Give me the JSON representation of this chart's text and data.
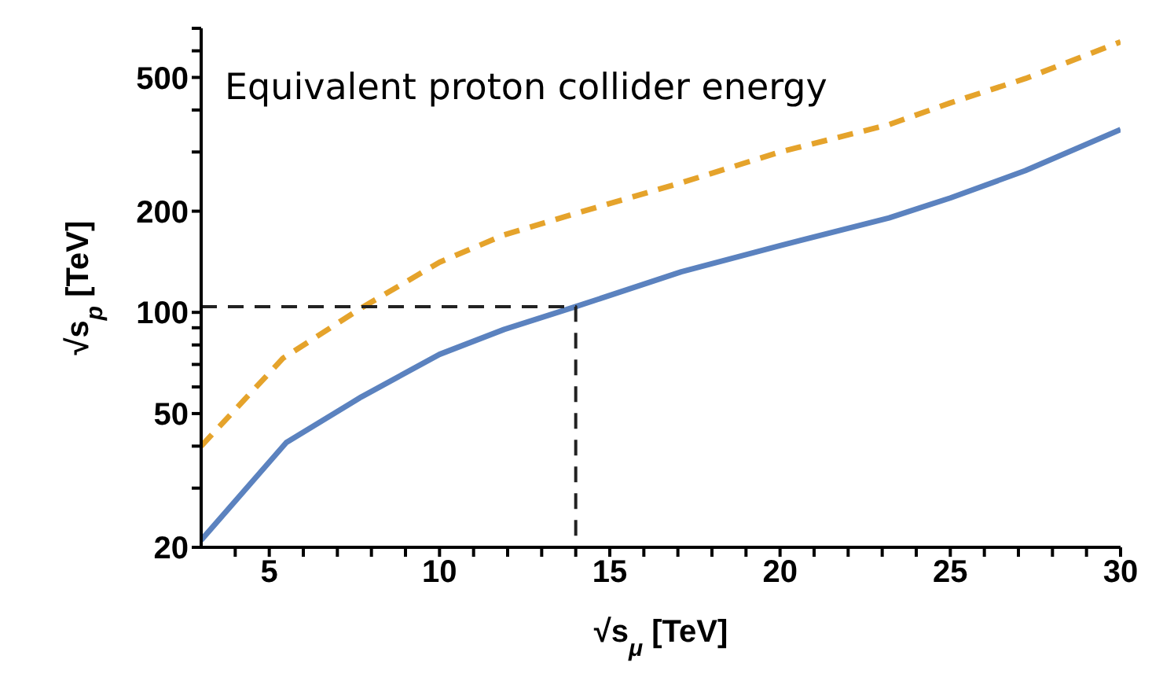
{
  "chart_data": {
    "type": "line",
    "title": "Equivalent proton collider energy",
    "xlabel": "√s$_{μ}$  [TeV]",
    "ylabel": "√s$_{p}$  [TeV]",
    "log": "y",
    "marker": "none",
    "xlim": [
      3,
      30
    ],
    "ylim": [
      20,
      700
    ],
    "xticks": [
      {
        "value": 4,
        "label": null
      },
      5,
      {
        "value": 6,
        "label": null
      },
      {
        "value": 7,
        "label": null
      },
      {
        "value": 8,
        "label": null
      },
      {
        "value": 9,
        "label": null
      },
      10,
      {
        "value": 11,
        "label": null
      },
      {
        "value": 12,
        "label": null
      },
      {
        "value": 13,
        "label": null
      },
      {
        "value": 14,
        "label": null
      },
      15,
      {
        "value": 16,
        "label": null
      },
      {
        "value": 17,
        "label": null
      },
      {
        "value": 18,
        "label": null
      },
      {
        "value": 19,
        "label": null
      },
      20,
      {
        "value": 21,
        "label": null
      },
      {
        "value": 22,
        "label": null
      },
      {
        "value": 23,
        "label": null
      },
      {
        "value": 24,
        "label": null
      },
      25,
      {
        "value": 26,
        "label": null
      },
      {
        "value": 27,
        "label": null
      },
      {
        "value": 28,
        "label": null
      },
      {
        "value": 29,
        "label": null
      },
      30
    ],
    "yticks": [
      20,
      {
        "value": 30,
        "label": null
      },
      {
        "value": 40,
        "label": null
      },
      50,
      {
        "value": 60,
        "label": null
      },
      {
        "value": 70,
        "label": null
      },
      {
        "value": 80,
        "label": null
      },
      {
        "value": 90,
        "label": null
      },
      100,
      200,
      {
        "value": 300,
        "label": null
      },
      {
        "value": 400,
        "label": null
      },
      500,
      {
        "value": 600,
        "label": null
      },
      {
        "value": 700,
        "label": null
      }
    ],
    "series": [
      {
        "color": "#5b82bf",
        "line_style": "solid",
        "x": [
          3,
          5.5,
          7.7,
          10,
          11.9,
          14,
          17.1,
          20,
          23.2,
          25,
          27.2,
          30
        ],
        "values": [
          21,
          41,
          56,
          75,
          89,
          104,
          132,
          158,
          191,
          219,
          264,
          350
        ]
      },
      {
        "color": "#e5a32b",
        "line_style": "dashed",
        "x": [
          3,
          5.4,
          7.7,
          10,
          11.9,
          14,
          17.1,
          20,
          23.2,
          25,
          27.2,
          30
        ],
        "values": [
          40,
          73,
          103,
          141,
          170,
          197,
          243,
          300,
          362,
          420,
          496,
          638
        ]
      },
      {
        "color": "#222222",
        "line_style": "dashed",
        "x": [
          3,
          14,
          14
        ],
        "values": [
          104,
          104,
          20
        ]
      }
    ]
  }
}
